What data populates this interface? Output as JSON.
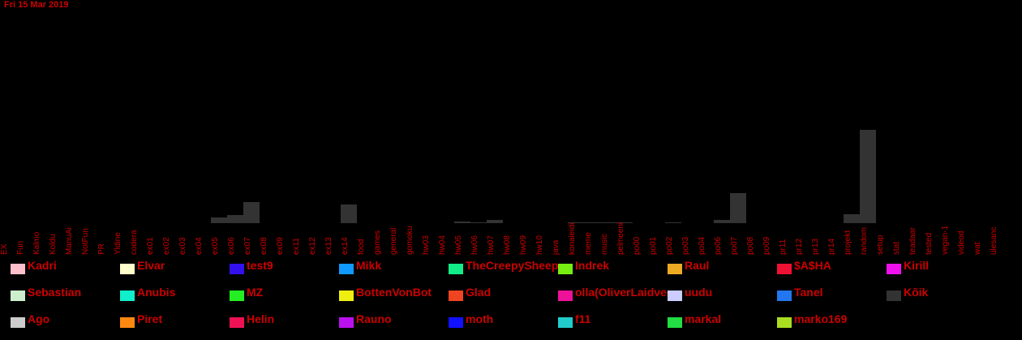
{
  "date": "Fri 15 Mar 2019",
  "chart_data": {
    "type": "bar",
    "categories": [
      "EX",
      "Fun",
      "Kalmo",
      "Koldu",
      "ManuAi",
      "NotFun",
      "PR",
      "Yldine",
      "codera",
      "ex01",
      "ex02",
      "ex03",
      "ex04",
      "ex05",
      "ex06",
      "ex07",
      "ex08",
      "ex09",
      "ex11",
      "ex12",
      "ex13",
      "ex14",
      "food",
      "games",
      "general",
      "gomoku",
      "hw03",
      "hw04",
      "hw05",
      "hw06",
      "hw07",
      "hw08",
      "hw09",
      "hw10",
      "java",
      "konaleidi",
      "meme",
      "music",
      "pelmeeni",
      "po00",
      "po01",
      "po02",
      "po03",
      "po04",
      "po06",
      "po07",
      "po08",
      "po09",
      "pr11",
      "pr12",
      "pr13",
      "pr14",
      "projekt",
      "random",
      "setup",
      "stat",
      "teadaar",
      "tested",
      "vegan-1",
      "videod",
      "wat",
      "ülesanc"
    ],
    "values": [
      0,
      0,
      0,
      0,
      0,
      0,
      0,
      0,
      0,
      0,
      0,
      0,
      0,
      7,
      10,
      26,
      0,
      0,
      0,
      0,
      0,
      23,
      0,
      0,
      0,
      0,
      0,
      0,
      2,
      1,
      4,
      0,
      0,
      0,
      0,
      1,
      1,
      1,
      1,
      0,
      0,
      1,
      0,
      0,
      4,
      37,
      0,
      0,
      0,
      0,
      0,
      0,
      11,
      115,
      0,
      0,
      0,
      0,
      0,
      0,
      0,
      0
    ],
    "ylim": [
      0,
      120
    ],
    "grid": false,
    "legend_placement": "bottom",
    "bar_color": "#333333",
    "tick_color": "#cc0000",
    "legend": [
      {
        "name": "Kadri",
        "color": "#ffc0cb"
      },
      {
        "name": "Elvar",
        "color": "#ffffcc"
      },
      {
        "name": "test9",
        "color": "#3311ee"
      },
      {
        "name": "Mikk",
        "color": "#1199ff"
      },
      {
        "name": "TheCreepySheep",
        "color": "#11ee88"
      },
      {
        "name": "Indrek",
        "color": "#77ee11"
      },
      {
        "name": "Raul",
        "color": "#eeaa22"
      },
      {
        "name": "$A$HA",
        "color": "#ee1133"
      },
      {
        "name": "Kirill",
        "color": "#ee11ee"
      },
      {
        "name": "Sebastian",
        "color": "#cceecc"
      },
      {
        "name": "Anubis",
        "color": "#11eecc"
      },
      {
        "name": "MZ",
        "color": "#22ee22"
      },
      {
        "name": "BottenVonBot",
        "color": "#eeee11"
      },
      {
        "name": "Glad",
        "color": "#ee4422"
      },
      {
        "name": "olla(OliverLaidvee)",
        "color": "#ee1199"
      },
      {
        "name": "uudu",
        "color": "#ccccff"
      },
      {
        "name": "Tanel",
        "color": "#2277ee"
      },
      {
        "name": "Kõik",
        "color": "#333333"
      },
      {
        "name": "Ago",
        "color": "#cccccc"
      },
      {
        "name": "Piret",
        "color": "#ff8811"
      },
      {
        "name": "Helin",
        "color": "#ee1155"
      },
      {
        "name": "Rauno",
        "color": "#bb11ee"
      },
      {
        "name": "moth",
        "color": "#1111ff"
      },
      {
        "name": "f11",
        "color": "#22cccc"
      },
      {
        "name": "markal",
        "color": "#22dd44"
      },
      {
        "name": "marko169",
        "color": "#aadd22"
      }
    ]
  }
}
